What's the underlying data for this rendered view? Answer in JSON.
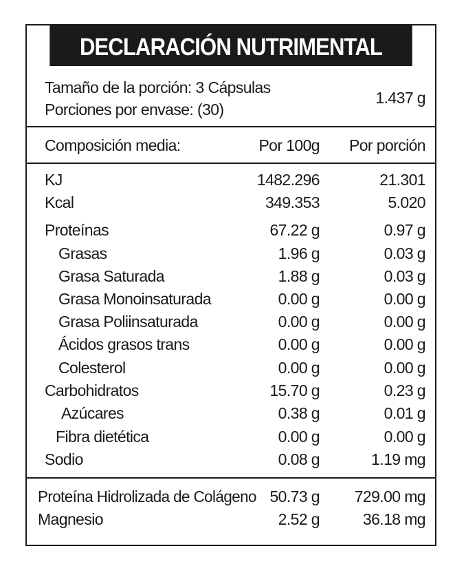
{
  "title": "DECLARACIÓN NUTRIMENTAL",
  "serving": {
    "size_label": "Tamaño de la porción: 3 Cápsulas",
    "servings_label": "Porciones por envase: (30)",
    "weight": "1.437 g"
  },
  "columns": {
    "name": "Composición media:",
    "per100": "Por 100g",
    "perserving": "Por porción"
  },
  "rows": [
    {
      "name": "KJ",
      "per100": "1482.296",
      "perserving": "21.301"
    },
    {
      "name": "Kcal",
      "per100": "349.353",
      "perserving": "5.020"
    },
    {
      "name": "Proteínas",
      "per100": "67.22 g",
      "perserving": "0.97 g"
    },
    {
      "name": "Grasas",
      "per100": "1.96 g",
      "perserving": "0.03 g"
    },
    {
      "name": "Grasa Saturada",
      "per100": "1.88 g",
      "perserving": "0.03 g"
    },
    {
      "name": "Grasa Monoinsaturada",
      "per100": "0.00 g",
      "perserving": "0.00 g"
    },
    {
      "name": "Grasa Poliinsaturada",
      "per100": "0.00 g",
      "perserving": "0.00 g"
    },
    {
      "name": "Ácidos grasos trans",
      "per100": "0.00 g",
      "perserving": "0.00 g"
    },
    {
      "name": "Colesterol",
      "per100": "0.00 g",
      "perserving": "0.00 g"
    },
    {
      "name": "Carbohidratos",
      "per100": "15.70 g",
      "perserving": "0.23 g"
    },
    {
      "name": "Azúcares",
      "per100": "0.38 g",
      "perserving": "0.01 g"
    },
    {
      "name": "Fibra dietética",
      "per100": "0.00 g",
      "perserving": "0.00 g"
    },
    {
      "name": "Sodio",
      "per100": "0.08 g",
      "perserving": "1.19 mg"
    }
  ],
  "extras": [
    {
      "name": "Proteína Hidrolizada de Colágeno",
      "per100": "50.73 g",
      "perserving": "729.00 mg"
    },
    {
      "name": "Magnesio",
      "per100": "2.52 g",
      "perserving": "36.18 mg"
    }
  ]
}
